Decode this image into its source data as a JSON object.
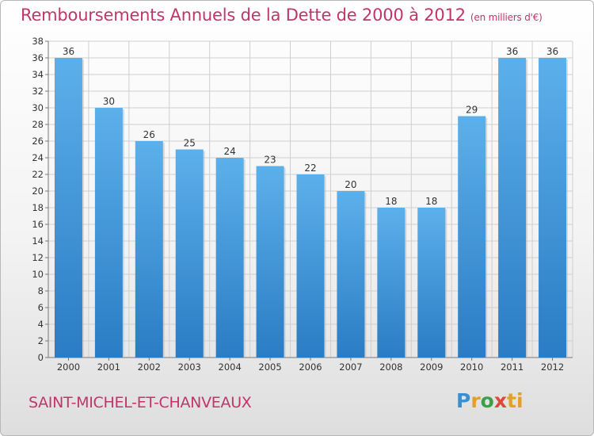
{
  "title": "Remboursements Annuels de la Dette de 2000 à 2012",
  "subtitle": "(en milliers d'€)",
  "town": "SAINT-MICHEL-ET-CHANVEAUX",
  "logo": {
    "p": "P",
    "r": "r",
    "o": "o",
    "x": "x",
    "i": "i",
    "t": "ti"
  },
  "colors": {
    "bar": "#2f86cf",
    "bar_light": "#5cb0ea",
    "title": "#c0356a",
    "grid": "#cccccc"
  },
  "chart_data": {
    "type": "bar",
    "categories": [
      "2000",
      "2001",
      "2002",
      "2003",
      "2004",
      "2005",
      "2006",
      "2007",
      "2008",
      "2009",
      "2010",
      "2011",
      "2012"
    ],
    "values": [
      36,
      30,
      26,
      25,
      24,
      23,
      22,
      20,
      18,
      18,
      29,
      36,
      36
    ],
    "data_labels": [
      "36",
      "30",
      "26",
      "25",
      "24",
      "23",
      "22",
      "20",
      "18",
      "18",
      "29",
      "36",
      "36"
    ],
    "ylim": [
      0,
      38
    ],
    "yticks": [
      0,
      2,
      4,
      6,
      8,
      10,
      12,
      14,
      16,
      18,
      20,
      22,
      24,
      26,
      28,
      30,
      32,
      34,
      36,
      38
    ],
    "grid": true,
    "title": "Remboursements Annuels de la Dette de 2000 à 2012",
    "subtitle": "(en milliers d'€)",
    "xlabel": "",
    "ylabel": ""
  }
}
